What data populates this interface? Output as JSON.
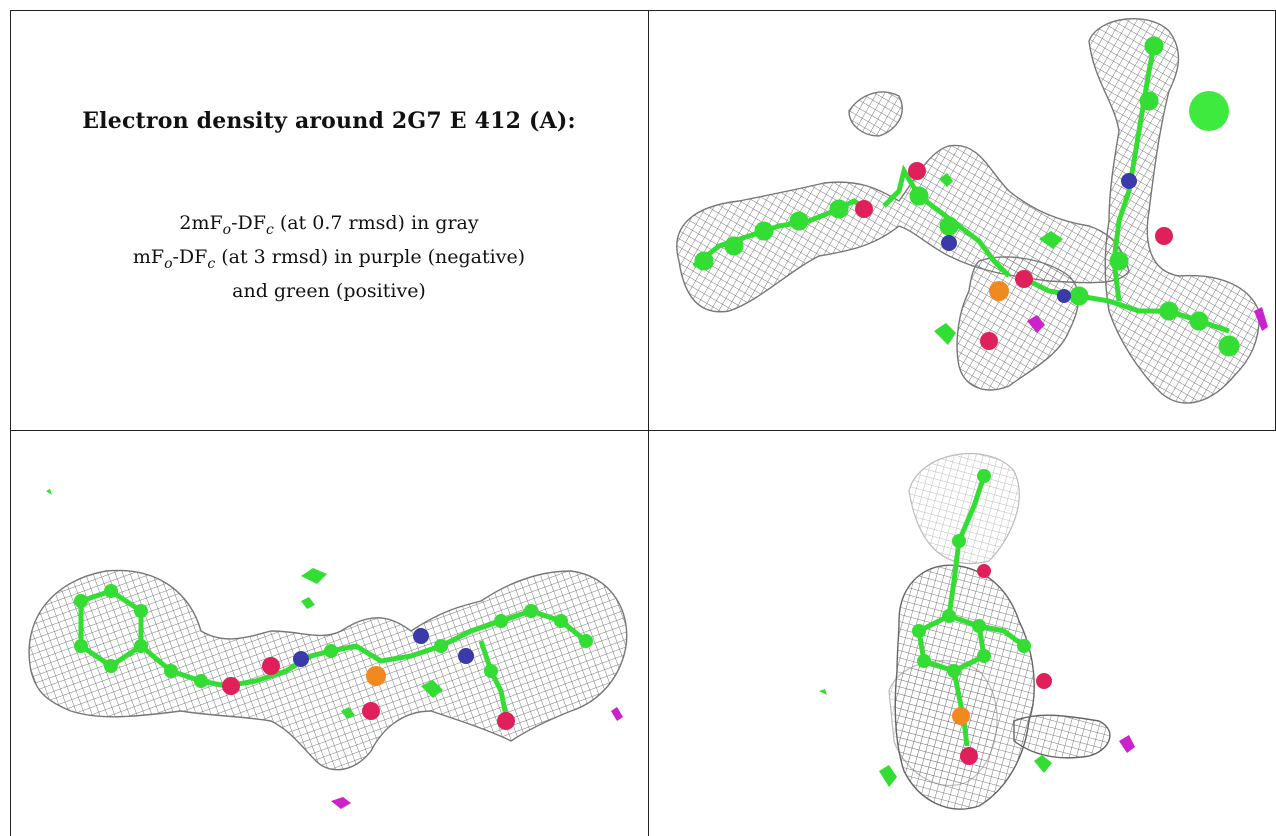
{
  "caption": {
    "title": "Electron density around 2G7 E 412 (A):",
    "line1": {
      "pre": "2mF",
      "sub1": "o",
      "mid": "-DF",
      "sub2": "c",
      "post": " (at 0.7 rmsd) in gray"
    },
    "line2": {
      "pre": "mF",
      "sub1": "o",
      "mid": "-DF",
      "sub2": "c",
      "post": " (at 3 rmsd) in purple (negative)"
    },
    "line3": "and green (positive)"
  },
  "colors": {
    "mesh_gray": "#8a8a8a",
    "carbon": "#33dd33",
    "oxygen": "#e0205a",
    "nitrogen": "#3a3aaa",
    "phosphorus": "#f08a20",
    "negative": "#cc22cc",
    "positive": "#33dd33"
  },
  "panels": [
    {
      "name": "top-right-density-view"
    },
    {
      "name": "bottom-left-density-view"
    },
    {
      "name": "bottom-right-density-view"
    }
  ]
}
